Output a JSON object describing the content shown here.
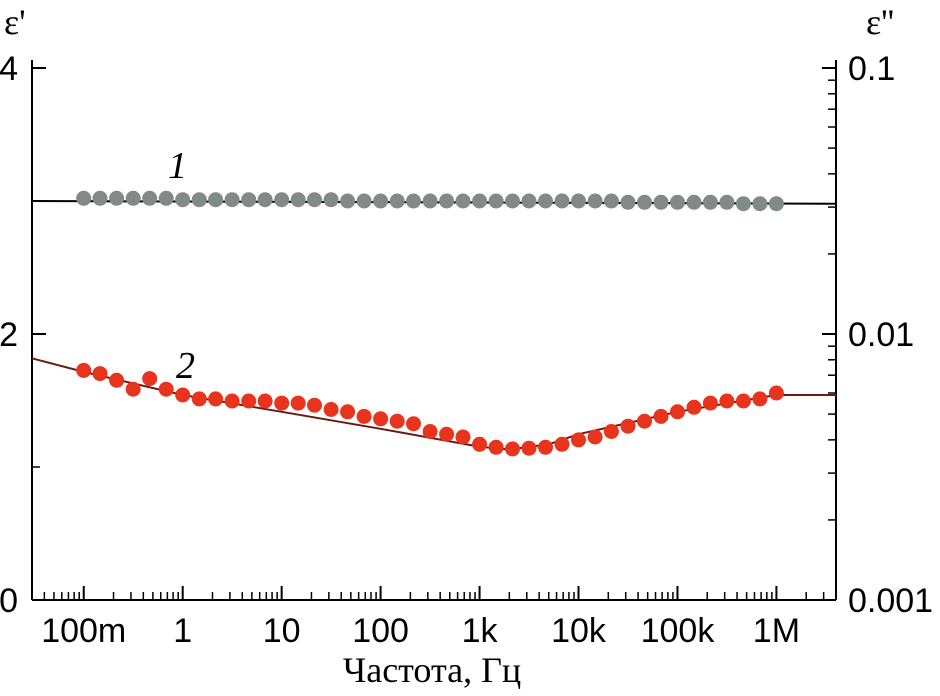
{
  "chart_data": {
    "type": "scatter",
    "xlabel": "Частота, Гц",
    "ylabel_left": "ε'",
    "ylabel_right": "ε''",
    "x_scale": "log",
    "xlim": [
      0.03,
      4000000
    ],
    "ylim_left": [
      0,
      4
    ],
    "ylim_right": [
      0.001,
      0.1
    ],
    "y_right_scale": "log",
    "x_ticks": [
      0.1,
      1,
      10,
      100,
      1000,
      10000,
      100000,
      1000000
    ],
    "x_tick_labels": [
      "100m",
      "1",
      "10",
      "100",
      "1k",
      "10k",
      "100k",
      "1M"
    ],
    "y_left_ticks": [
      0,
      2,
      4
    ],
    "y_left_tick_labels": [
      "0",
      "2",
      "4"
    ],
    "y_right_ticks": [
      0.001,
      0.01,
      0.1
    ],
    "y_right_tick_labels": [
      "0.001",
      "0.01",
      "0.1"
    ],
    "grid": false,
    "colors": {
      "series_1": "#808a88",
      "series_2": "#e8341c",
      "fit_1": "#000000",
      "fit_2": "#6a1a12"
    },
    "series": [
      {
        "label": "1",
        "axis": "left",
        "fit_line": {
          "x": [
            0.03,
            4000000
          ],
          "y": [
            3.0,
            2.98
          ]
        },
        "points": [
          [
            0.1,
            3.02
          ],
          [
            0.146,
            3.02
          ],
          [
            0.215,
            3.02
          ],
          [
            0.316,
            3.02
          ],
          [
            0.464,
            3.02
          ],
          [
            0.681,
            3.02
          ],
          [
            1,
            3.01
          ],
          [
            1.47,
            3.01
          ],
          [
            2.15,
            3.01
          ],
          [
            3.16,
            3.01
          ],
          [
            4.64,
            3.01
          ],
          [
            6.81,
            3.01
          ],
          [
            10,
            3.01
          ],
          [
            14.7,
            3.01
          ],
          [
            21.5,
            3.01
          ],
          [
            31.6,
            3.01
          ],
          [
            46.4,
            3.0
          ],
          [
            68.1,
            3.0
          ],
          [
            100,
            3.0
          ],
          [
            147,
            3.0
          ],
          [
            215,
            3.0
          ],
          [
            316,
            3.0
          ],
          [
            464,
            3.0
          ],
          [
            681,
            3.0
          ],
          [
            1000,
            3.0
          ],
          [
            1470,
            3.0
          ],
          [
            2150,
            3.0
          ],
          [
            3160,
            3.0
          ],
          [
            4640,
            3.0
          ],
          [
            6810,
            3.0
          ],
          [
            10000,
            3.0
          ],
          [
            14700,
            3.0
          ],
          [
            21500,
            3.0
          ],
          [
            31600,
            2.99
          ],
          [
            46400,
            2.99
          ],
          [
            68100,
            2.99
          ],
          [
            100000,
            2.99
          ],
          [
            147000,
            2.99
          ],
          [
            215000,
            2.99
          ],
          [
            316000,
            2.99
          ],
          [
            464000,
            2.98
          ],
          [
            681000,
            2.98
          ],
          [
            1000000,
            2.98
          ]
        ]
      },
      {
        "label": "2",
        "axis": "right",
        "fit_line": {
          "x": [
            0.03,
            0.1,
            1,
            10,
            100,
            1000,
            2000,
            5000,
            10000,
            100000,
            1000000,
            4000000
          ],
          "y": [
            0.0081,
            0.0072,
            0.0059,
            0.0051,
            0.0044,
            0.00377,
            0.00368,
            0.00385,
            0.0042,
            0.0051,
            0.0059,
            0.0059
          ]
        },
        "points": [
          [
            0.1,
            0.0073
          ],
          [
            0.146,
            0.0071
          ],
          [
            0.215,
            0.0067
          ],
          [
            0.316,
            0.0062
          ],
          [
            0.464,
            0.0068
          ],
          [
            0.681,
            0.0062
          ],
          [
            1,
            0.0059
          ],
          [
            1.47,
            0.0057
          ],
          [
            2.15,
            0.0057
          ],
          [
            3.16,
            0.0056
          ],
          [
            4.64,
            0.0056
          ],
          [
            6.81,
            0.0056
          ],
          [
            10,
            0.0055
          ],
          [
            14.7,
            0.0055
          ],
          [
            21.5,
            0.0054
          ],
          [
            31.6,
            0.0052
          ],
          [
            46.4,
            0.0051
          ],
          [
            68.1,
            0.0049
          ],
          [
            100,
            0.0048
          ],
          [
            147,
            0.0047
          ],
          [
            215,
            0.0046
          ],
          [
            316,
            0.0043
          ],
          [
            464,
            0.0042
          ],
          [
            681,
            0.0041
          ],
          [
            1000,
            0.00385
          ],
          [
            1470,
            0.00375
          ],
          [
            2150,
            0.0037
          ],
          [
            3160,
            0.00372
          ],
          [
            4640,
            0.00375
          ],
          [
            6810,
            0.00385
          ],
          [
            10000,
            0.004
          ],
          [
            14700,
            0.0041
          ],
          [
            21500,
            0.0043
          ],
          [
            31600,
            0.0045
          ],
          [
            46400,
            0.0047
          ],
          [
            68100,
            0.0049
          ],
          [
            100000,
            0.0051
          ],
          [
            147000,
            0.0053
          ],
          [
            215000,
            0.0055
          ],
          [
            316000,
            0.0056
          ],
          [
            464000,
            0.0056
          ],
          [
            681000,
            0.0057
          ],
          [
            1000000,
            0.006
          ]
        ]
      }
    ]
  }
}
